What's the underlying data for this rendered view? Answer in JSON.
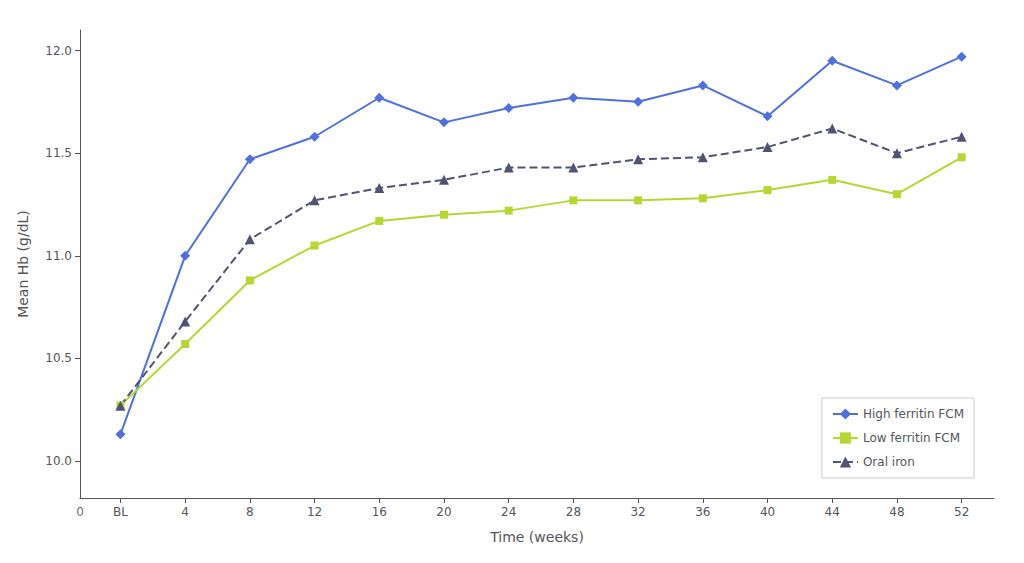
{
  "chart_data": {
    "type": "line",
    "xlabel": "Time (weeks)",
    "ylabel": "Mean Hb (g/dL)",
    "x": [
      0,
      4,
      8,
      12,
      16,
      20,
      24,
      28,
      32,
      36,
      40,
      44,
      48,
      52
    ],
    "series": [
      {
        "name": "High ferritin FCM",
        "marker": "diamond",
        "line_style": "solid",
        "values": [
          10.13,
          11.0,
          11.47,
          11.58,
          11.77,
          11.65,
          11.72,
          11.77,
          11.75,
          11.83,
          11.68,
          11.95,
          11.83,
          11.97
        ]
      },
      {
        "name": "Low ferritin FCM",
        "marker": "square",
        "line_style": "solid",
        "values": [
          10.27,
          10.57,
          10.88,
          11.05,
          11.17,
          11.2,
          11.22,
          11.27,
          11.27,
          11.28,
          11.32,
          11.37,
          11.3,
          11.48
        ]
      },
      {
        "name": "Oral iron",
        "marker": "triangle",
        "line_style": "dashed",
        "values": [
          10.27,
          10.68,
          11.08,
          11.27,
          11.33,
          11.37,
          11.43,
          11.43,
          11.47,
          11.48,
          11.53,
          11.62,
          11.5,
          11.58
        ]
      }
    ],
    "xlim": [
      -2.5,
      54
    ],
    "xticks": [
      {
        "value": 0,
        "label": "BL"
      },
      4,
      8,
      12,
      16,
      20,
      24,
      28,
      32,
      36,
      40,
      44,
      48,
      52
    ],
    "ylim": [
      9.82,
      12.1
    ],
    "yticks": [
      {
        "value": 10.0,
        "label": "10.0"
      },
      10.5,
      {
        "value": 11.0,
        "label": "11.0"
      },
      11.5,
      {
        "value": 12.0,
        "label": "12.0"
      }
    ],
    "annotations": [
      {
        "text": "0"
      }
    ],
    "grid": false,
    "legend": "lower right"
  }
}
